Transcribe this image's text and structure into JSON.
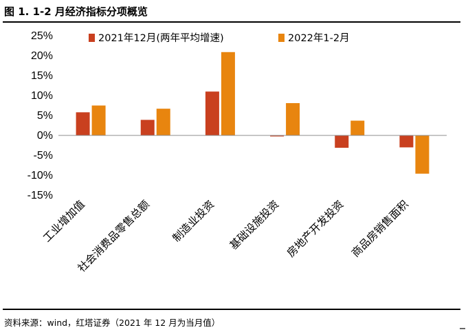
{
  "figure": {
    "title": "图 1. 1-2 月经济指标分项概览",
    "source": "资料来源：wind，红塔证券（2021 年 12 月为当月值）"
  },
  "colors": {
    "series_2021": "#C9401F",
    "series_2022": "#E8850F",
    "axis": "#8C8C8C"
  },
  "chart_data": {
    "type": "bar",
    "categories": [
      "工业增加值",
      "社会消费品零售总额",
      "制造业投资",
      "基础设施投资",
      "房地产开发投资",
      "商品房销售面积"
    ],
    "series": [
      {
        "name": "2021年12月(两年平均增速)",
        "values": [
          5.8,
          3.9,
          11.0,
          -0.2,
          -3.1,
          -3.0
        ]
      },
      {
        "name": "2022年1-2月",
        "values": [
          7.5,
          6.7,
          20.9,
          8.1,
          3.7,
          -9.6
        ]
      }
    ],
    "ylim": [
      -15,
      25
    ],
    "yticks": [
      -15,
      -10,
      -5,
      0,
      5,
      10,
      15,
      20,
      25
    ],
    "ytick_labels": [
      "-15%",
      "-10%",
      "-5%",
      "0%",
      "5%",
      "10%",
      "15%",
      "20%",
      "25%"
    ],
    "legend_position": "top",
    "grid": false
  }
}
